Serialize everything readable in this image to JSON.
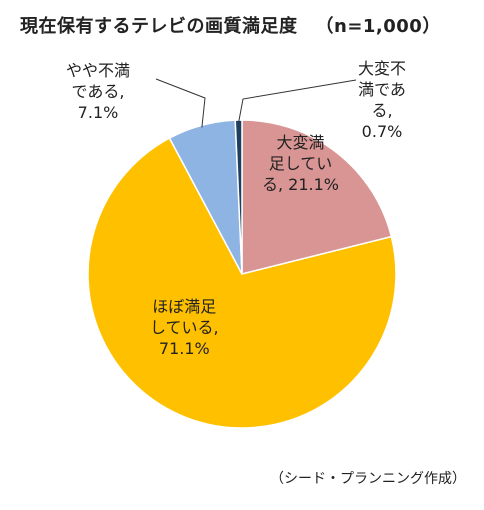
{
  "title": "現在保有するテレビの画質満足度",
  "n_label": "（n=1,000）",
  "credit": "（シード・プランニング作成）",
  "chart_data": {
    "type": "pie",
    "title": "現在保有するテレビの画質満足度",
    "n": 1000,
    "start_angle_deg": 0,
    "direction": "clockwise",
    "slices": [
      {
        "label": "大変満足している",
        "value": 21.1,
        "color": "#d99594",
        "lines": [
          "大変満",
          "足してい",
          "る, 21.1%"
        ]
      },
      {
        "label": "ほぼ満足している",
        "value": 71.1,
        "color": "#ffc000",
        "lines": [
          "ほぼ満足",
          "している,",
          "71.1%"
        ]
      },
      {
        "label": "やや不満である",
        "value": 7.1,
        "color": "#8eb4e3",
        "lines": [
          "やや不満",
          "である,",
          "7.1%"
        ]
      },
      {
        "label": "大変不満である",
        "value": 0.7,
        "color": "#1f3f5f",
        "lines": [
          "大変不",
          "満であ",
          "る,",
          "0.7%"
        ]
      }
    ]
  }
}
